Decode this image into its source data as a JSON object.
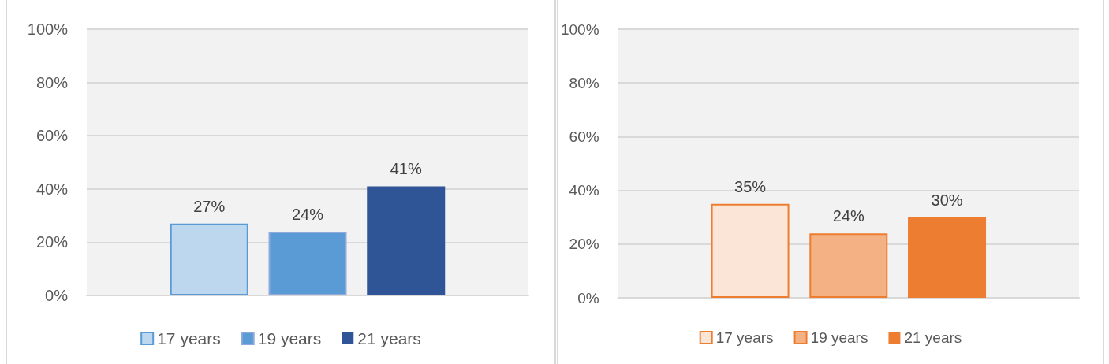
{
  "chart_data": [
    {
      "type": "bar",
      "categories": [
        null
      ],
      "series": [
        {
          "name": "17 years",
          "color": "#bdd7ee",
          "values": [
            27
          ],
          "value_labels": [
            "27%"
          ]
        },
        {
          "name": "19 years",
          "color": "#5b9bd5",
          "values": [
            24
          ],
          "value_labels": [
            "24%"
          ]
        },
        {
          "name": "21 years",
          "color": "#2f5597",
          "values": [
            41
          ],
          "value_labels": [
            "41%"
          ]
        }
      ],
      "ylim": [
        0,
        100
      ],
      "yticks": [
        {
          "value": 0,
          "label": "0%"
        },
        {
          "value": 20,
          "label": "20%"
        },
        {
          "value": 40,
          "label": "40%"
        },
        {
          "value": 60,
          "label": "60%"
        },
        {
          "value": 80,
          "label": "80%"
        },
        {
          "value": 100,
          "label": "100%"
        }
      ],
      "grid": "y",
      "legend": "bottom",
      "tick_labels": "y"
    },
    {
      "type": "bar",
      "categories": [
        null
      ],
      "series": [
        {
          "name": "17 years",
          "color": "#fbe5d6",
          "values": [
            35
          ],
          "value_labels": [
            "35%"
          ]
        },
        {
          "name": "19 years",
          "color": "#f4b183",
          "values": [
            24
          ],
          "value_labels": [
            "24%"
          ]
        },
        {
          "name": "21 years",
          "color": "#ed7d31",
          "values": [
            30
          ],
          "value_labels": [
            "30%"
          ]
        }
      ],
      "ylim": [
        0,
        100
      ],
      "yticks": [
        {
          "value": 0,
          "label": "0%"
        },
        {
          "value": 20,
          "label": "20%"
        },
        {
          "value": 40,
          "label": "40%"
        },
        {
          "value": 60,
          "label": "60%"
        },
        {
          "value": 80,
          "label": "80%"
        },
        {
          "value": 100,
          "label": "100%"
        }
      ],
      "grid": "y",
      "legend": "bottom",
      "tick_labels": "y"
    }
  ]
}
